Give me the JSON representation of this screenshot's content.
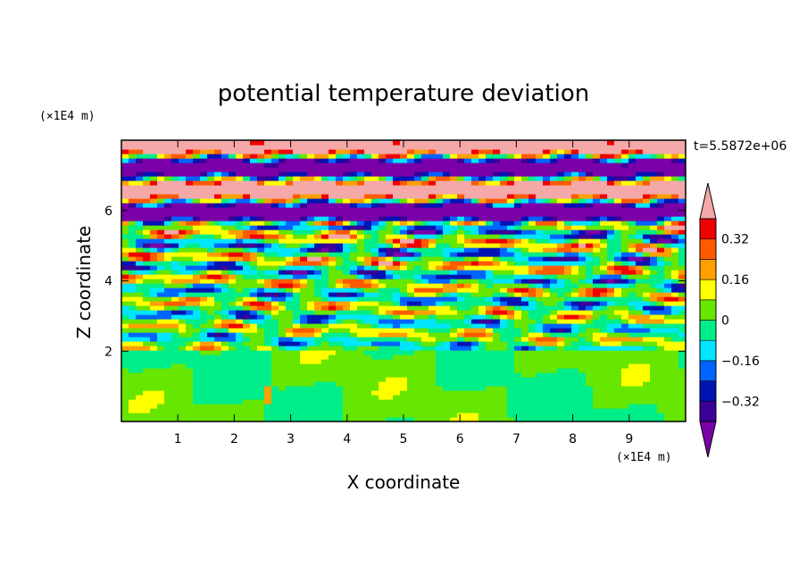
{
  "chart_data": {
    "type": "heatmap",
    "title": "potential temperature deviation",
    "xlabel": "X coordinate",
    "ylabel": "Z coordinate",
    "x_unit": "(×1E4 m)",
    "y_unit": "(×1E4 m)",
    "time_label": "t=5.5872e+06",
    "xlim": [
      0,
      10
    ],
    "ylim": [
      0,
      8
    ],
    "x_ticks": [
      "1",
      "2",
      "3",
      "4",
      "5",
      "6",
      "7",
      "8",
      "9"
    ],
    "y_ticks": [
      "2",
      "4",
      "6"
    ],
    "colorbar": {
      "levels": [
        -0.4,
        -0.32,
        -0.24,
        -0.16,
        -0.08,
        0,
        0.08,
        0.16,
        0.24,
        0.32,
        0.4
      ],
      "tick_labels": [
        "0.32",
        "0.16",
        "0",
        "−0.16",
        "−0.32"
      ],
      "colors": [
        "#7a00a8",
        "#3b0096",
        "#0014b4",
        "#0064ff",
        "#00e6ff",
        "#00ee8a",
        "#66e600",
        "#ffff00",
        "#ffa000",
        "#ff5a00",
        "#f00000",
        "#f4a8a8"
      ],
      "extend": "both"
    },
    "layers": [
      {
        "z_range": [
          0,
          2
        ],
        "pattern": "smooth mixed layer, values near 0 to +0.08"
      },
      {
        "z_range": [
          2,
          5.5
        ],
        "pattern": "oblique wave bands, values ranging -0.32 to +0.32"
      },
      {
        "z_range": [
          5.5,
          8
        ],
        "pattern": "horizontal bands alternating above +0.4 and below -0.4"
      }
    ]
  }
}
